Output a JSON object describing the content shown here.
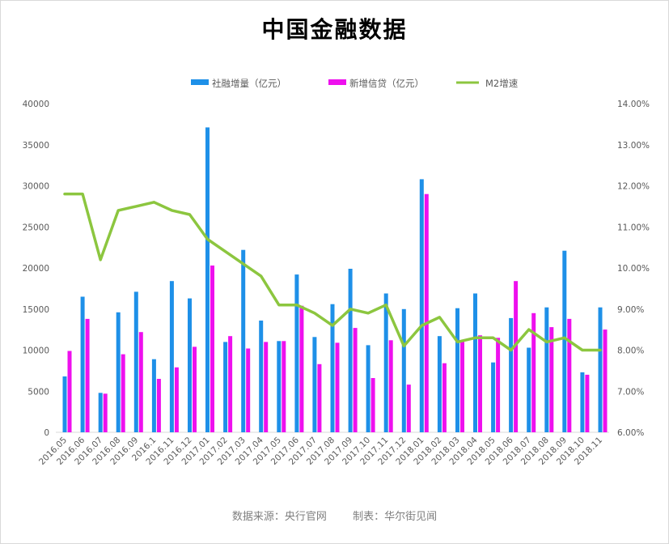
{
  "chart_data": {
    "type": "bar",
    "title": "中国金融数据",
    "categories": [
      "2016.05",
      "2016.06",
      "2016.07",
      "2016.08",
      "2016.09",
      "2016.1",
      "2016.11",
      "2016.12",
      "2017.01",
      "2017.02",
      "2017.03",
      "2017.04",
      "2017.05",
      "2017.06",
      "2017.07",
      "2017.08",
      "2017.09",
      "2017.10",
      "2017.11",
      "2017.12",
      "2018.01",
      "2018.02",
      "2018.03",
      "2018.04",
      "2018.05",
      "2018.06",
      "2018.07",
      "2018.08",
      "2018.09",
      "2018.10",
      "2018.11"
    ],
    "series": [
      {
        "name": "社融增量（亿元）",
        "type": "bar",
        "axis": "left",
        "color": "#1e90e8",
        "values": [
          6800,
          16500,
          4800,
          14600,
          17100,
          8900,
          18400,
          16300,
          37100,
          11000,
          22200,
          13600,
          11100,
          19200,
          11600,
          15600,
          19900,
          10600,
          16900,
          15000,
          30800,
          11700,
          15100,
          16900,
          8500,
          13900,
          10300,
          15200,
          22100,
          7300,
          15200
        ]
      },
      {
        "name": "新增信贷（亿元）",
        "type": "bar",
        "axis": "left",
        "color": "#ee10ee",
        "values": [
          9900,
          13800,
          4700,
          9500,
          12200,
          6500,
          7900,
          10400,
          20300,
          11700,
          10200,
          11000,
          11100,
          15400,
          8300,
          10900,
          12700,
          6600,
          11200,
          5800,
          29000,
          8400,
          11200,
          11800,
          11500,
          18400,
          14500,
          12800,
          13800,
          7000,
          12500
        ]
      },
      {
        "name": "M2增速",
        "type": "line",
        "axis": "right",
        "color": "#8cc63f",
        "values": [
          11.8,
          11.8,
          10.2,
          11.4,
          11.5,
          11.6,
          11.4,
          11.3,
          10.7,
          10.4,
          10.1,
          9.8,
          9.1,
          9.1,
          8.9,
          8.6,
          9.0,
          8.9,
          9.1,
          8.1,
          8.6,
          8.8,
          8.2,
          8.3,
          8.3,
          8.0,
          8.5,
          8.2,
          8.3,
          8.0,
          8.0
        ]
      }
    ],
    "y_left": {
      "min": 0,
      "max": 40000,
      "ticks": [
        "0",
        "5000",
        "10000",
        "15000",
        "20000",
        "25000",
        "30000",
        "35000",
        "40000"
      ]
    },
    "y_right": {
      "min": 6,
      "max": 14,
      "ticks": [
        "6.00%",
        "7.00%",
        "8.00%",
        "9.00%",
        "10.00%",
        "11.00%",
        "12.00%",
        "13.00%",
        "14.00%"
      ]
    },
    "grid": false,
    "legend": "top-center"
  },
  "footer": {
    "source": "数据来源：央行官网",
    "maker": "制表：华尔街见闻"
  }
}
